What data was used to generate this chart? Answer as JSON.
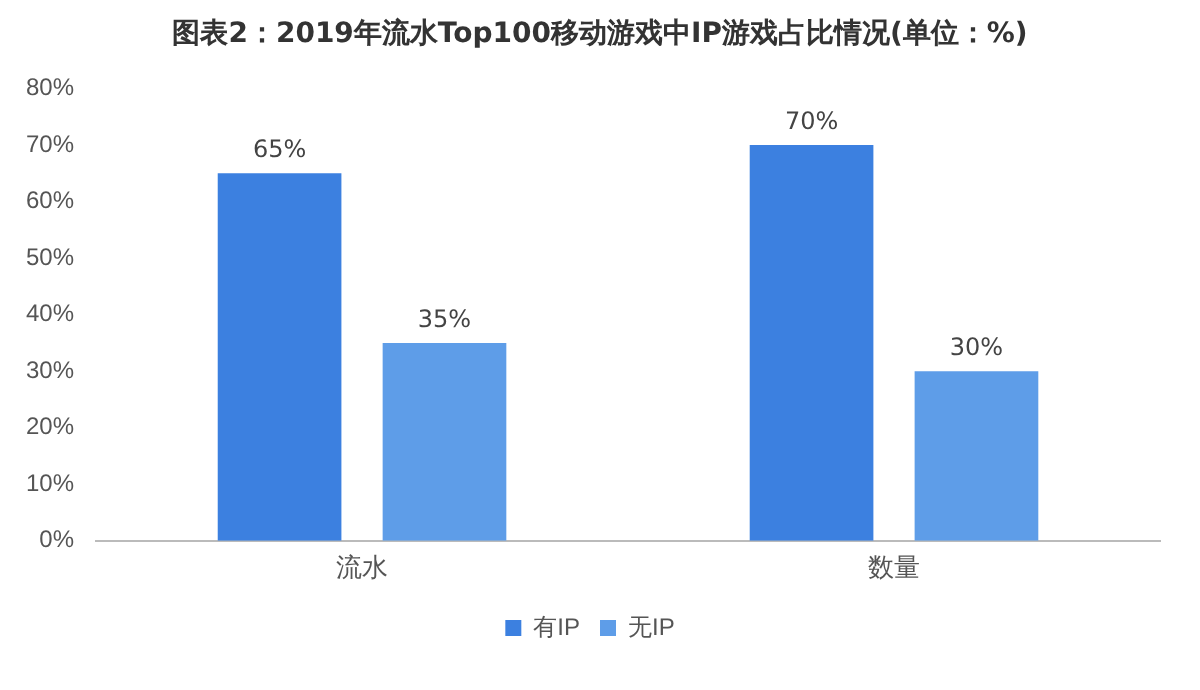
{
  "chart_data": {
    "type": "bar",
    "title": "图表2：2019年流水Top100移动游戏中IP游戏占比情况(单位：%)",
    "categories": [
      "流水",
      "数量"
    ],
    "series": [
      {
        "name": "有IP",
        "color": "#3c80e0",
        "values": [
          65,
          70
        ],
        "value_labels": [
          "65%",
          "70%"
        ]
      },
      {
        "name": "无IP",
        "color": "#5e9de8",
        "values": [
          35,
          30
        ],
        "value_labels": [
          "35%",
          "30%"
        ]
      }
    ],
    "ylim": [
      0,
      80
    ],
    "yticks": [
      {
        "value": 0,
        "label": "0%"
      },
      {
        "value": 10,
        "label": "10%"
      },
      {
        "value": 20,
        "label": "20%"
      },
      {
        "value": 30,
        "label": "30%"
      },
      {
        "value": 40,
        "label": "40%"
      },
      {
        "value": 50,
        "label": "50%"
      },
      {
        "value": 60,
        "label": "60%"
      },
      {
        "value": 70,
        "label": "70%"
      },
      {
        "value": 80,
        "label": "80%"
      }
    ],
    "grid": false,
    "legend": "bottom"
  }
}
